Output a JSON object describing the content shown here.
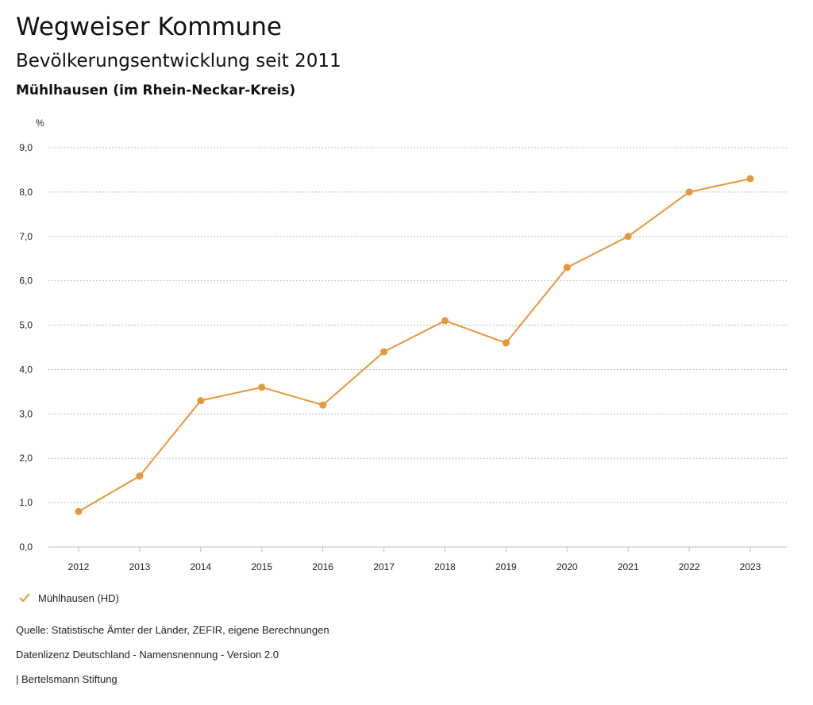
{
  "header": {
    "title": "Wegweiser Kommune",
    "subtitle": "Bevölkerungsentwicklung seit 2011",
    "region": "Mühlhausen (im Rhein-Neckar-Kreis)"
  },
  "chart_data": {
    "type": "line",
    "title": "Bevölkerungsentwicklung seit 2011",
    "ylabel": "%",
    "xlabel": "",
    "x": [
      "2012",
      "2013",
      "2014",
      "2015",
      "2016",
      "2017",
      "2018",
      "2019",
      "2020",
      "2021",
      "2022",
      "2023"
    ],
    "series": [
      {
        "name": "Mühlhausen (HD)",
        "values": [
          0.8,
          1.6,
          3.3,
          3.6,
          3.2,
          4.4,
          5.1,
          4.6,
          6.3,
          7.0,
          8.0,
          8.3
        ]
      }
    ],
    "ylim": [
      0,
      9
    ],
    "yticks": [
      "0,0",
      "1,0",
      "2,0",
      "3,0",
      "4,0",
      "5,0",
      "6,0",
      "7,0",
      "8,0",
      "9,0"
    ],
    "grid": true,
    "legend_position": "bottom-left",
    "color": "#e8963a"
  },
  "legend": {
    "label": "Mühlhausen (HD)"
  },
  "footer": {
    "source": "Quelle: Statistische Ämter der Länder, ZEFIR, eigene Berechnungen",
    "license": "Datenlizenz Deutschland - Namensnennung - Version 2.0",
    "publisher": "| Bertelsmann Stiftung"
  }
}
